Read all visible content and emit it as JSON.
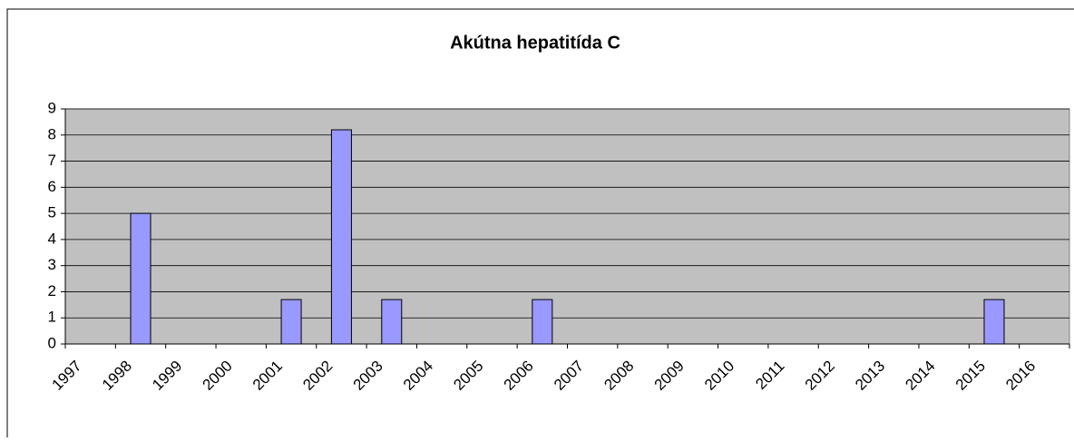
{
  "chart_data": {
    "type": "bar",
    "title": "Akútna hepatitída C",
    "categories": [
      "1997",
      "1998",
      "1999",
      "2000",
      "2001",
      "2002",
      "2003",
      "2004",
      "2005",
      "2006",
      "2007",
      "2008",
      "2009",
      "2010",
      "2011",
      "2012",
      "2013",
      "2014",
      "2015",
      "2016"
    ],
    "values": [
      0,
      5,
      0,
      0,
      1.7,
      8.2,
      1.7,
      0,
      0,
      1.7,
      0,
      0,
      0,
      0,
      0,
      0,
      0,
      0,
      1.7,
      0
    ],
    "color": "#9999ff",
    "plot_background": "#c0c0c0",
    "ylim": [
      0,
      9
    ],
    "yticks": [
      0,
      1,
      2,
      3,
      4,
      5,
      6,
      7,
      8,
      9
    ],
    "grid": true
  }
}
